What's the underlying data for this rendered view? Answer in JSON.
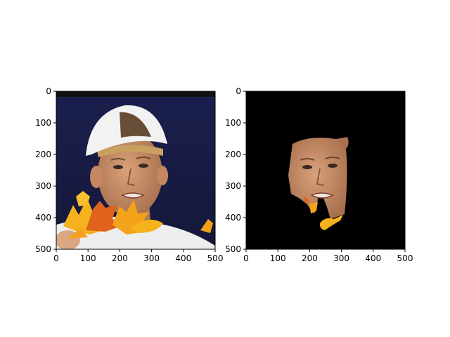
{
  "chart_data": [
    {
      "type": "image",
      "content": "face photo with overlaid autumn leaves",
      "xlim": [
        0,
        500
      ],
      "ylim": [
        500,
        0
      ],
      "xticks": [
        0,
        100,
        200,
        300,
        400,
        500
      ],
      "yticks": [
        0,
        100,
        200,
        300,
        400,
        500
      ],
      "title": "",
      "xlabel": "",
      "ylabel": ""
    },
    {
      "type": "image",
      "content": "segmented face mask on black background",
      "xlim": [
        0,
        500
      ],
      "ylim": [
        500,
        0
      ],
      "xticks": [
        0,
        100,
        200,
        300,
        400,
        500
      ],
      "yticks": [
        0,
        100,
        200,
        300,
        400,
        500
      ],
      "title": "",
      "xlabel": "",
      "ylabel": ""
    }
  ],
  "colors": {
    "photo_background": "#1a1f4a",
    "skin": "#c8906a",
    "cap": "#f2f2f2",
    "leaf_orange": "#f4a21a",
    "leaf_red": "#d8501a",
    "mask_background": "#000000"
  }
}
